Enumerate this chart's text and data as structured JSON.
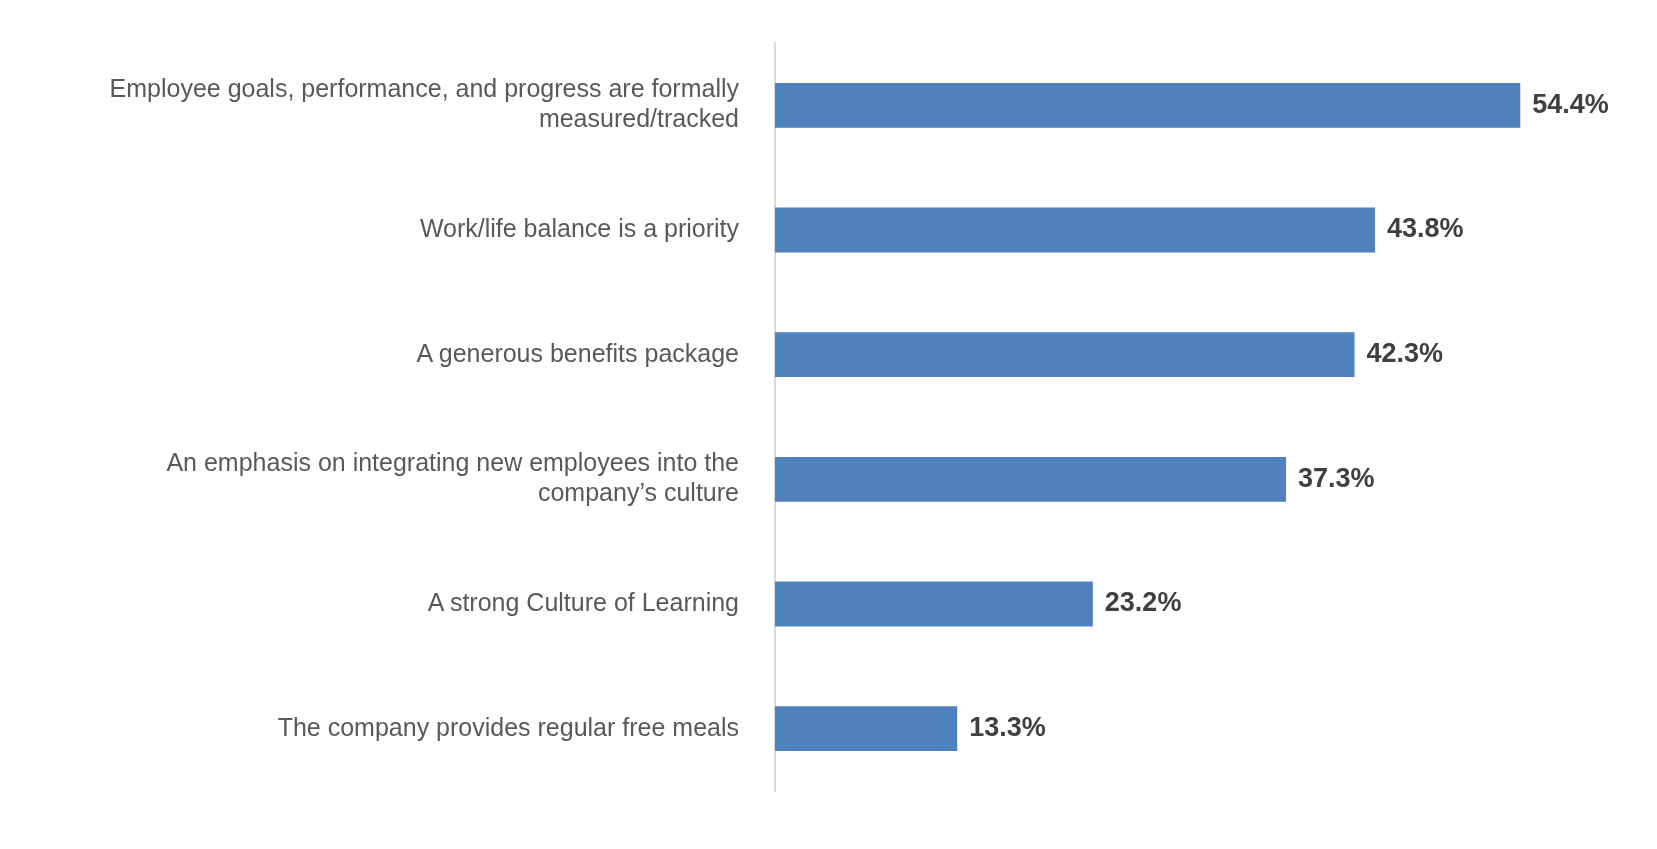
{
  "chart_data": {
    "type": "bar",
    "orientation": "horizontal",
    "categories": [
      "Employee goals, performance, and progress are formally measured/tracked",
      "Work/life balance is a priority",
      "A generous benefits package",
      "An emphasis on integrating new employees into the company’s culture",
      "A strong Culture of Learning",
      "The company provides regular free meals"
    ],
    "values": [
      54.4,
      43.8,
      42.3,
      37.3,
      23.2,
      13.3
    ],
    "value_labels": [
      "54.4%",
      "43.8%",
      "42.3%",
      "37.3%",
      "23.2%",
      "13.3%"
    ],
    "color": "#4f81bd"
  }
}
